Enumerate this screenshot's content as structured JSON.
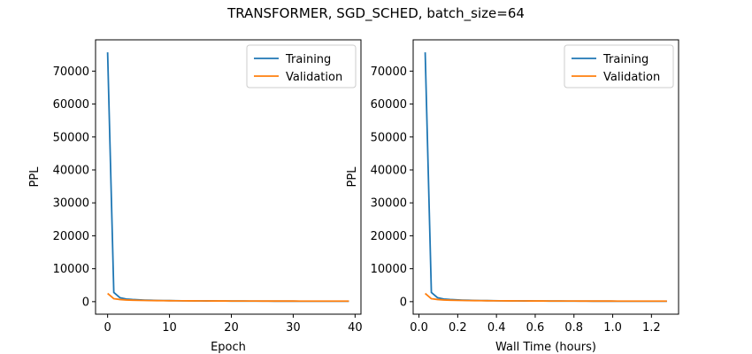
{
  "chart_data": {
    "title": "TRANSFORMER, SGD_SCHED, batch_size=64",
    "colors": {
      "training": "#1f77b4",
      "validation": "#ff7f0e"
    },
    "panels": [
      {
        "type": "line",
        "xlabel": "Epoch",
        "ylabel": "PPL",
        "xlim": [
          -1.95,
          40.95
        ],
        "ylim": [
          -3800,
          79500
        ],
        "xticks": [
          0,
          10,
          20,
          30,
          40
        ],
        "yticks": [
          0,
          10000,
          20000,
          30000,
          40000,
          50000,
          60000,
          70000
        ],
        "grid": false,
        "legend": "top-right",
        "series": [
          {
            "name": "Training",
            "x": [
              0,
              1,
              2,
              3,
              4,
              5,
              6,
              7,
              8,
              9,
              10,
              11,
              12,
              13,
              14,
              15,
              16,
              17,
              18,
              19,
              20,
              21,
              22,
              23,
              24,
              25,
              26,
              27,
              28,
              29,
              30,
              31,
              32,
              33,
              34,
              35,
              36,
              37,
              38,
              39
            ],
            "y": [
              75700,
              2800,
              1200,
              800,
              650,
              550,
              470,
              410,
              370,
              340,
              310,
              290,
              270,
              255,
              240,
              228,
              217,
              208,
              200,
              192,
              185,
              179,
              173,
              168,
              163,
              159,
              155,
              151,
              148,
              145,
              142,
              139,
              137,
              135,
              133,
              131,
              129,
              127,
              126,
              125
            ]
          },
          {
            "name": "Validation",
            "x": [
              0,
              1,
              2,
              3,
              4,
              5,
              6,
              7,
              8,
              9,
              10,
              11,
              12,
              13,
              14,
              15,
              16,
              17,
              18,
              19,
              20,
              21,
              22,
              23,
              24,
              25,
              26,
              27,
              28,
              29,
              30,
              31,
              32,
              33,
              34,
              35,
              36,
              37,
              38,
              39
            ],
            "y": [
              2500,
              900,
              650,
              520,
              450,
              400,
              370,
              340,
              320,
              300,
              285,
              272,
              260,
              250,
              241,
              233,
              226,
              220,
              214,
              209,
              204,
              200,
              196,
              192,
              189,
              186,
              183,
              180,
              178,
              176,
              174,
              172,
              170,
              168,
              167,
              166,
              165,
              164,
              163,
              162
            ]
          }
        ]
      },
      {
        "type": "line",
        "xlabel": "Wall Time (hours)",
        "ylabel": "PPL",
        "xlim": [
          -0.03,
          1.34
        ],
        "ylim": [
          -3800,
          79500
        ],
        "xticks": [
          0.0,
          0.2,
          0.4,
          0.6,
          0.8,
          1.0,
          1.2
        ],
        "xtick_labels": [
          "0.0",
          "0.2",
          "0.4",
          "0.6",
          "0.8",
          "1.0",
          "1.2"
        ],
        "yticks": [
          0,
          10000,
          20000,
          30000,
          40000,
          50000,
          60000,
          70000
        ],
        "grid": false,
        "legend": "top-right",
        "series": [
          {
            "name": "Training",
            "x": [
              0.032,
              0.064,
              0.096,
              0.128,
              0.16,
              0.192,
              0.224,
              0.256,
              0.288,
              0.32,
              0.352,
              0.384,
              0.416,
              0.448,
              0.48,
              0.512,
              0.544,
              0.576,
              0.608,
              0.64,
              0.672,
              0.704,
              0.736,
              0.768,
              0.8,
              0.832,
              0.864,
              0.896,
              0.928,
              0.96,
              0.992,
              1.024,
              1.056,
              1.088,
              1.12,
              1.152,
              1.184,
              1.216,
              1.248,
              1.28
            ],
            "y": [
              75700,
              2800,
              1200,
              800,
              650,
              550,
              470,
              410,
              370,
              340,
              310,
              290,
              270,
              255,
              240,
              228,
              217,
              208,
              200,
              192,
              185,
              179,
              173,
              168,
              163,
              159,
              155,
              151,
              148,
              145,
              142,
              139,
              137,
              135,
              133,
              131,
              129,
              127,
              126,
              125
            ]
          },
          {
            "name": "Validation",
            "x": [
              0.032,
              0.064,
              0.096,
              0.128,
              0.16,
              0.192,
              0.224,
              0.256,
              0.288,
              0.32,
              0.352,
              0.384,
              0.416,
              0.448,
              0.48,
              0.512,
              0.544,
              0.576,
              0.608,
              0.64,
              0.672,
              0.704,
              0.736,
              0.768,
              0.8,
              0.832,
              0.864,
              0.896,
              0.928,
              0.96,
              0.992,
              1.024,
              1.056,
              1.088,
              1.12,
              1.152,
              1.184,
              1.216,
              1.248,
              1.28
            ],
            "y": [
              2500,
              900,
              650,
              520,
              450,
              400,
              370,
              340,
              320,
              300,
              285,
              272,
              260,
              250,
              241,
              233,
              226,
              220,
              214,
              209,
              204,
              200,
              196,
              192,
              189,
              186,
              183,
              180,
              178,
              176,
              174,
              172,
              170,
              168,
              167,
              166,
              165,
              164,
              163,
              162
            ]
          }
        ]
      }
    ]
  }
}
